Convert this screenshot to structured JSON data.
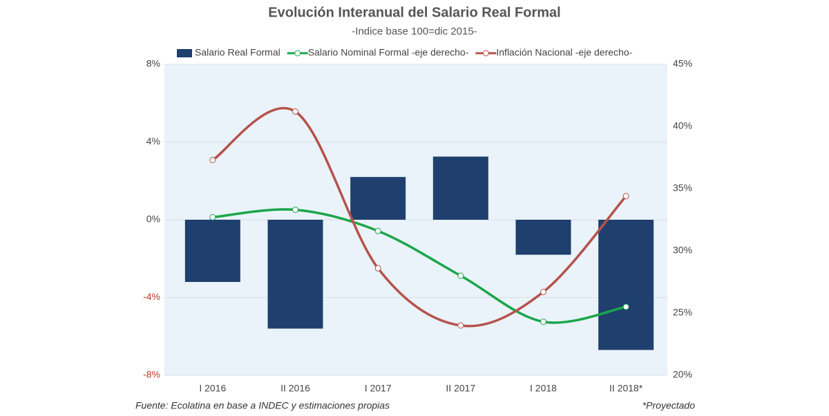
{
  "chart_data": {
    "type": "bar-line",
    "title": "Evolución Interanual del Salario Real Formal",
    "subtitle": "-Indice base 100=dic 2015-",
    "categories": [
      "I 2016",
      "II 2016",
      "I 2017",
      "II 2017",
      "I 2018",
      "II 2018*"
    ],
    "series": [
      {
        "name": "Salario Real Formal",
        "type": "bar",
        "color": "#1f3f6e",
        "values": [
          -3.2,
          -5.6,
          2.2,
          3.25,
          -1.8,
          -6.7
        ]
      },
      {
        "name": "Salario Nominal Formal -eje derecho-",
        "type": "line",
        "axis": "y2",
        "color": "#1aa64a",
        "values": [
          32.7,
          33.3,
          31.6,
          28.0,
          24.3,
          25.5
        ]
      },
      {
        "name": "Inflación Nacional -eje derecho-",
        "type": "line",
        "axis": "y2",
        "color": "#b5524a",
        "values": [
          37.3,
          41.2,
          28.6,
          24.0,
          26.7,
          34.4
        ]
      }
    ],
    "ylim": [
      -8,
      8
    ],
    "yticks": [
      {
        "value": -8,
        "label": "-8%"
      },
      {
        "value": -4,
        "label": "-4%"
      },
      {
        "value": 0,
        "label": "0%"
      },
      {
        "value": 4,
        "label": "4%"
      },
      {
        "value": 8,
        "label": "8%"
      }
    ],
    "y2lim": [
      20,
      45
    ],
    "y2ticks": [
      {
        "value": 20,
        "label": "20%"
      },
      {
        "value": 25,
        "label": "25%"
      },
      {
        "value": 30,
        "label": "30%"
      },
      {
        "value": 35,
        "label": "35%"
      },
      {
        "value": 40,
        "label": "40%"
      },
      {
        "value": 45,
        "label": "45%"
      }
    ],
    "grid": true,
    "legend": "top",
    "source": "Fuente: Ecolatina en base a INDEC y estimaciones propias",
    "note": "*Proyectado"
  }
}
